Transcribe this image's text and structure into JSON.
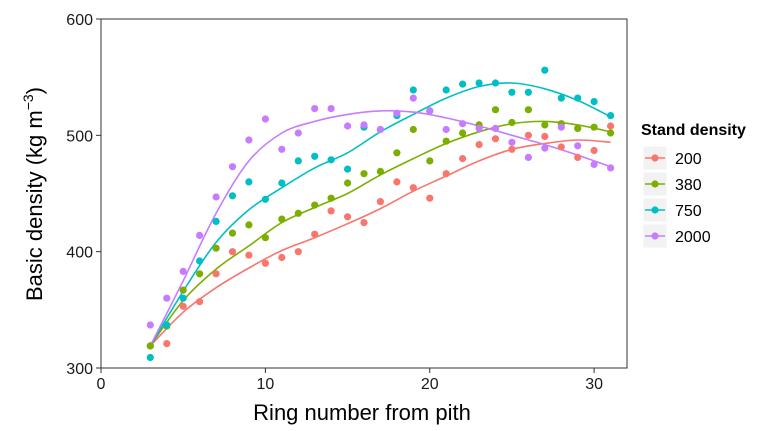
{
  "chart_data": {
    "type": "scatter",
    "title": "",
    "xlabel": "Ring number from pith",
    "ylabel_main": "Basic density (kg m",
    "ylabel_sup": "−3",
    "ylabel_close": ")",
    "xlim": [
      0,
      32
    ],
    "ylim": [
      300,
      600
    ],
    "xticks": [
      0,
      10,
      20,
      30
    ],
    "yticks": [
      300,
      400,
      500,
      600
    ],
    "grid": false,
    "legend_position": "right",
    "legend_title": "Stand density",
    "series": [
      {
        "name": "200",
        "color": "#F8766D",
        "points": [
          [
            3,
            319
          ],
          [
            4,
            321
          ],
          [
            5,
            353
          ],
          [
            6,
            357
          ],
          [
            7,
            381
          ],
          [
            8,
            400
          ],
          [
            9,
            397
          ],
          [
            10,
            390
          ],
          [
            11,
            395
          ],
          [
            12,
            400
          ],
          [
            13,
            415
          ],
          [
            14,
            435
          ],
          [
            15,
            430
          ],
          [
            16,
            425
          ],
          [
            17,
            443
          ],
          [
            18,
            460
          ],
          [
            19,
            455
          ],
          [
            20,
            446
          ],
          [
            21,
            467
          ],
          [
            22,
            480
          ],
          [
            23,
            492
          ],
          [
            24,
            497
          ],
          [
            25,
            488
          ],
          [
            26,
            500
          ],
          [
            27,
            499
          ],
          [
            28,
            490
          ],
          [
            29,
            481
          ],
          [
            30,
            487
          ],
          [
            31,
            508
          ]
        ],
        "fit": [
          [
            3,
            319
          ],
          [
            5,
            348
          ],
          [
            7,
            369
          ],
          [
            9,
            386
          ],
          [
            11,
            401
          ],
          [
            13,
            412
          ],
          [
            15,
            424
          ],
          [
            17,
            437
          ],
          [
            19,
            452
          ],
          [
            21,
            465
          ],
          [
            23,
            478
          ],
          [
            25,
            488
          ],
          [
            27,
            493
          ],
          [
            29,
            496
          ],
          [
            31,
            494
          ]
        ]
      },
      {
        "name": "380",
        "color": "#7CAE00",
        "points": [
          [
            3,
            319
          ],
          [
            4,
            336
          ],
          [
            5,
            367
          ],
          [
            6,
            381
          ],
          [
            7,
            403
          ],
          [
            8,
            416
          ],
          [
            9,
            423
          ],
          [
            10,
            412
          ],
          [
            11,
            428
          ],
          [
            12,
            433
          ],
          [
            13,
            440
          ],
          [
            14,
            446
          ],
          [
            15,
            459
          ],
          [
            16,
            467
          ],
          [
            17,
            469
          ],
          [
            18,
            485
          ],
          [
            19,
            505
          ],
          [
            20,
            478
          ],
          [
            21,
            495
          ],
          [
            22,
            502
          ],
          [
            23,
            509
          ],
          [
            24,
            522
          ],
          [
            25,
            511
          ],
          [
            26,
            522
          ],
          [
            27,
            509
          ],
          [
            28,
            510
          ],
          [
            29,
            506
          ],
          [
            30,
            507
          ],
          [
            31,
            502
          ]
        ],
        "fit": [
          [
            3,
            319
          ],
          [
            5,
            358
          ],
          [
            7,
            385
          ],
          [
            9,
            405
          ],
          [
            11,
            425
          ],
          [
            13,
            438
          ],
          [
            15,
            450
          ],
          [
            17,
            466
          ],
          [
            19,
            480
          ],
          [
            21,
            493
          ],
          [
            23,
            503
          ],
          [
            25,
            510
          ],
          [
            27,
            512
          ],
          [
            29,
            509
          ],
          [
            31,
            503
          ]
        ]
      },
      {
        "name": "750",
        "color": "#00BFC4",
        "points": [
          [
            3,
            309
          ],
          [
            4,
            337
          ],
          [
            5,
            360
          ],
          [
            6,
            392
          ],
          [
            7,
            426
          ],
          [
            8,
            448
          ],
          [
            9,
            460
          ],
          [
            10,
            445
          ],
          [
            11,
            459
          ],
          [
            12,
            478
          ],
          [
            13,
            482
          ],
          [
            14,
            479
          ],
          [
            15,
            471
          ],
          [
            16,
            507
          ],
          [
            17,
            505
          ],
          [
            18,
            517
          ],
          [
            19,
            539
          ],
          [
            20,
            521
          ],
          [
            21,
            539
          ],
          [
            22,
            544
          ],
          [
            23,
            545
          ],
          [
            24,
            545
          ],
          [
            25,
            537
          ],
          [
            26,
            537
          ],
          [
            27,
            556
          ],
          [
            28,
            532
          ],
          [
            29,
            532
          ],
          [
            30,
            529
          ],
          [
            31,
            517
          ]
        ],
        "fit": [
          [
            3,
            319
          ],
          [
            5,
            366
          ],
          [
            7,
            408
          ],
          [
            9,
            436
          ],
          [
            11,
            455
          ],
          [
            13,
            472
          ],
          [
            15,
            485
          ],
          [
            17,
            503
          ],
          [
            19,
            518
          ],
          [
            21,
            532
          ],
          [
            23,
            542
          ],
          [
            25,
            545
          ],
          [
            27,
            540
          ],
          [
            29,
            530
          ],
          [
            31,
            516
          ]
        ]
      },
      {
        "name": "2000",
        "color": "#C77CFF",
        "points": [
          [
            3,
            337
          ],
          [
            4,
            360
          ],
          [
            5,
            383
          ],
          [
            6,
            414
          ],
          [
            7,
            447
          ],
          [
            8,
            473
          ],
          [
            9,
            496
          ],
          [
            10,
            514
          ],
          [
            11,
            488
          ],
          [
            12,
            502
          ],
          [
            13,
            523
          ],
          [
            14,
            523
          ],
          [
            15,
            508
          ],
          [
            16,
            509
          ],
          [
            17,
            505
          ],
          [
            18,
            519
          ],
          [
            19,
            532
          ],
          [
            20,
            521
          ],
          [
            21,
            505
          ],
          [
            22,
            510
          ],
          [
            23,
            506
          ],
          [
            24,
            506
          ],
          [
            25,
            494
          ],
          [
            26,
            481
          ],
          [
            27,
            489
          ],
          [
            28,
            507
          ],
          [
            29,
            491
          ],
          [
            30,
            475
          ],
          [
            31,
            472
          ]
        ],
        "fit": [
          [
            3,
            319
          ],
          [
            5,
            375
          ],
          [
            7,
            433
          ],
          [
            9,
            478
          ],
          [
            11,
            502
          ],
          [
            13,
            512
          ],
          [
            15,
            518
          ],
          [
            17,
            521
          ],
          [
            19,
            520
          ],
          [
            21,
            515
          ],
          [
            23,
            508
          ],
          [
            25,
            500
          ],
          [
            27,
            492
          ],
          [
            29,
            483
          ],
          [
            31,
            473
          ]
        ]
      }
    ]
  }
}
